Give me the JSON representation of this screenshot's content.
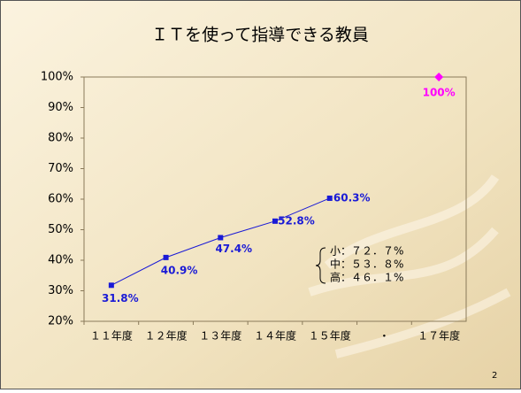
{
  "chart_data": {
    "type": "line",
    "title": "ＩＴを使って指導できる教員",
    "categories": [
      "１１年度",
      "１２年度",
      "１３年度",
      "１４年度",
      "１５年度",
      "・",
      "１７年度"
    ],
    "series": [
      {
        "color": "#1a1ad6",
        "marker": "square",
        "values": [
          31.8,
          40.9,
          47.4,
          52.8,
          60.3,
          null,
          null
        ],
        "value_labels": [
          "31.8%",
          "40.9%",
          "47.4%",
          "52.8%",
          "60.3%",
          null,
          null
        ]
      },
      {
        "color": "#ff00ff",
        "marker": "diamond",
        "values": [
          null,
          null,
          null,
          null,
          null,
          null,
          100
        ],
        "value_labels": [
          null,
          null,
          null,
          null,
          null,
          null,
          "100%"
        ]
      }
    ],
    "ylim": [
      20,
      100
    ],
    "yticks": [
      {
        "value": 20,
        "label": "20%"
      },
      {
        "value": 30,
        "label": "30%"
      },
      {
        "value": 40,
        "label": "40%"
      },
      {
        "value": 50,
        "label": "50%"
      },
      {
        "value": 60,
        "label": "60%"
      },
      {
        "value": 70,
        "label": "70%"
      },
      {
        "value": 80,
        "label": "80%"
      },
      {
        "value": 90,
        "label": "90%"
      },
      {
        "value": 100,
        "label": "100%"
      }
    ],
    "annotations": [
      "小：７２．７%",
      "中：５３．８%",
      "高：４６．１%"
    ]
  },
  "page_number": "2"
}
